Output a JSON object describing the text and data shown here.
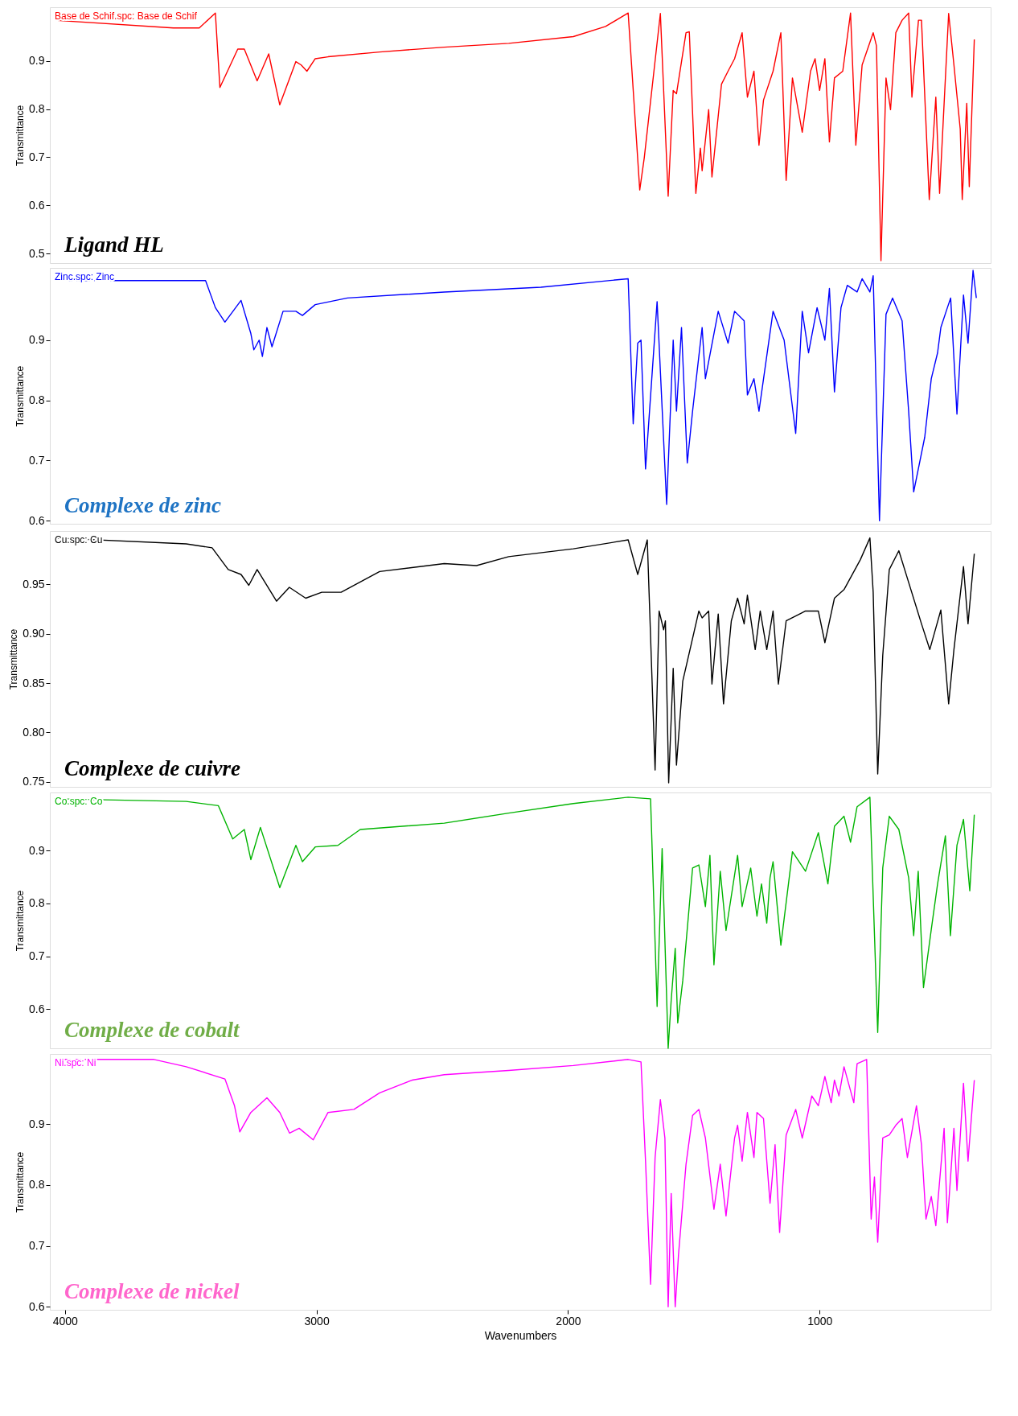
{
  "chart_data": [
    {
      "type": "line",
      "xlim": [
        4060,
        320
      ],
      "ylim": [
        0.48,
        1.012
      ],
      "yticks": [
        0.5,
        0.6,
        0.7,
        0.8,
        0.9
      ],
      "ylabel": "Transmittance",
      "tick_labels": "y",
      "grid": false,
      "marker": "none",
      "line_style": "solid",
      "annotations": [
        "Base de Schif.spc: Base de Schif",
        "Ligand HL"
      ],
      "series": [
        {
          "color": "#ff0000",
          "x": [
            4043,
            3569,
            3466,
            3402,
            3384,
            3313,
            3287,
            3236,
            3190,
            3146,
            3082,
            3061,
            3038,
            3005,
            2954,
            2749,
            2492,
            2236,
            1979,
            1851,
            1761,
            1715,
            1697,
            1633,
            1602,
            1582,
            1569,
            1531,
            1518,
            1492,
            1474,
            1467,
            1441,
            1428,
            1390,
            1364,
            1338,
            1308,
            1287,
            1261,
            1241,
            1223,
            1185,
            1154,
            1133,
            1108,
            1069,
            1036,
            1018,
            1000,
            979,
            961,
            941,
            908,
            877,
            856,
            831,
            787,
            774,
            756,
            736,
            718,
            697,
            672,
            646,
            633,
            607,
            595,
            564,
            538,
            523,
            487,
            466,
            441,
            433,
            415,
            405,
            385
          ],
          "values": [
            0.985,
            0.969,
            0.969,
            1.0,
            0.845,
            0.925,
            0.925,
            0.859,
            0.915,
            0.809,
            0.899,
            0.892,
            0.879,
            0.905,
            0.909,
            0.919,
            0.929,
            0.937,
            0.951,
            0.972,
            1.0,
            0.632,
            0.699,
            0.999,
            0.619,
            0.839,
            0.832,
            0.959,
            0.961,
            0.625,
            0.719,
            0.672,
            0.799,
            0.659,
            0.852,
            0.879,
            0.905,
            0.959,
            0.825,
            0.879,
            0.725,
            0.819,
            0.879,
            0.959,
            0.652,
            0.865,
            0.752,
            0.879,
            0.905,
            0.839,
            0.905,
            0.732,
            0.865,
            0.879,
            1.0,
            0.725,
            0.892,
            0.959,
            0.932,
            0.485,
            0.865,
            0.799,
            0.959,
            0.985,
            1.0,
            0.825,
            0.985,
            0.985,
            0.612,
            0.825,
            0.625,
            0.999,
            0.892,
            0.759,
            0.612,
            0.812,
            0.639,
            0.945
          ]
        }
      ]
    },
    {
      "type": "line",
      "xlim": [
        4060,
        320
      ],
      "ylim": [
        0.595,
        1.02
      ],
      "yticks": [
        0.6,
        0.7,
        0.8,
        0.9
      ],
      "ylabel": "Transmittance",
      "tick_labels": "y",
      "grid": false,
      "marker": "none",
      "line_style": "solid",
      "annotations": [
        "Zinc.spc: Zinc",
        "Complexe de zinc"
      ],
      "series": [
        {
          "color": "#0000ff",
          "x": [
            4043,
            3441,
            3402,
            3364,
            3300,
            3261,
            3249,
            3228,
            3215,
            3197,
            3177,
            3133,
            3082,
            3056,
            3005,
            2877,
            2492,
            2108,
            1761,
            1741,
            1723,
            1710,
            1692,
            1646,
            1608,
            1582,
            1569,
            1549,
            1526,
            1505,
            1467,
            1454,
            1403,
            1364,
            1338,
            1300,
            1287,
            1261,
            1241,
            1185,
            1141,
            1095,
            1069,
            1044,
            1010,
            979,
            961,
            941,
            915,
            890,
            851,
            831,
            800,
            787,
            762,
            736,
            710,
            672,
            646,
            626,
            582,
            556,
            531,
            518,
            492,
            479,
            454,
            428,
            410,
            390,
            377
          ],
          "values": [
            0.999,
            0.999,
            0.954,
            0.93,
            0.966,
            0.911,
            0.884,
            0.9,
            0.873,
            0.921,
            0.889,
            0.948,
            0.948,
            0.941,
            0.959,
            0.97,
            0.98,
            0.988,
            1.002,
            0.761,
            0.895,
            0.9,
            0.686,
            0.964,
            0.627,
            0.9,
            0.782,
            0.921,
            0.696,
            0.782,
            0.921,
            0.836,
            0.948,
            0.895,
            0.948,
            0.932,
            0.809,
            0.836,
            0.782,
            0.948,
            0.9,
            0.745,
            0.948,
            0.879,
            0.954,
            0.9,
            0.986,
            0.814,
            0.954,
            0.991,
            0.98,
            1.002,
            0.98,
            1.007,
            0.6,
            0.943,
            0.97,
            0.932,
            0.782,
            0.648,
            0.739,
            0.836,
            0.879,
            0.921,
            0.954,
            0.97,
            0.777,
            0.975,
            0.895,
            1.016,
            0.97
          ]
        }
      ]
    },
    {
      "type": "line",
      "xlim": [
        4060,
        320
      ],
      "ylim": [
        0.745,
        1.004
      ],
      "yticks": [
        {
          "value": 0.75,
          "label": "0.75"
        },
        {
          "value": 0.8,
          "label": "0.80"
        },
        {
          "value": 0.85,
          "label": "0.85"
        },
        {
          "value": 0.9,
          "label": "0.90"
        },
        {
          "value": 0.95,
          "label": "0.95"
        }
      ],
      "ylabel": "Transmittance",
      "tick_labels": "y",
      "grid": false,
      "marker": "none",
      "line_style": "solid",
      "annotations": [
        "Cu.spc: Cu",
        "Complexe de cuivre"
      ],
      "series": [
        {
          "color": "#000000",
          "x": [
            4043,
            3518,
            3415,
            3351,
            3300,
            3269,
            3236,
            3159,
            3108,
            3043,
            2979,
            2902,
            2749,
            2492,
            2364,
            2236,
            1979,
            1761,
            1723,
            1685,
            1654,
            1638,
            1620,
            1613,
            1600,
            1582,
            1569,
            1544,
            1480,
            1467,
            1441,
            1428,
            1403,
            1382,
            1351,
            1326,
            1300,
            1287,
            1256,
            1236,
            1210,
            1185,
            1164,
            1133,
            1056,
            1005,
            979,
            941,
            902,
            838,
            800,
            787,
            769,
            749,
            723,
            685,
            646,
            595,
            562,
            518,
            487,
            466,
            428,
            410,
            385
          ],
          "values": [
            0.997,
            0.991,
            0.987,
            0.965,
            0.96,
            0.949,
            0.965,
            0.933,
            0.947,
            0.936,
            0.942,
            0.942,
            0.963,
            0.971,
            0.969,
            0.978,
            0.986,
            0.995,
            0.96,
            0.995,
            0.762,
            0.923,
            0.904,
            0.913,
            0.749,
            0.865,
            0.767,
            0.852,
            0.923,
            0.916,
            0.923,
            0.849,
            0.92,
            0.829,
            0.913,
            0.936,
            0.91,
            0.939,
            0.884,
            0.923,
            0.884,
            0.923,
            0.849,
            0.913,
            0.923,
            0.923,
            0.891,
            0.936,
            0.945,
            0.975,
            0.997,
            0.942,
            0.758,
            0.878,
            0.965,
            0.984,
            0.952,
            0.91,
            0.884,
            0.924,
            0.829,
            0.884,
            0.968,
            0.91,
            0.981
          ]
        }
      ]
    },
    {
      "type": "line",
      "xlim": [
        4060,
        320
      ],
      "ylim": [
        0.526,
        1.01
      ],
      "yticks": [
        0.6,
        0.7,
        0.8,
        0.9
      ],
      "ylabel": "Transmittance",
      "tick_labels": "y",
      "grid": false,
      "marker": "none",
      "line_style": "solid",
      "annotations": [
        "Co.spc: Co",
        "Complexe de cobalt"
      ],
      "series": [
        {
          "color": "#00b400",
          "x": [
            4043,
            3518,
            3390,
            3333,
            3287,
            3261,
            3223,
            3146,
            3082,
            3056,
            3005,
            2915,
            2826,
            2492,
            2236,
            1979,
            1761,
            1672,
            1646,
            1626,
            1602,
            1590,
            1574,
            1564,
            1544,
            1505,
            1480,
            1454,
            1436,
            1420,
            1395,
            1372,
            1326,
            1308,
            1274,
            1249,
            1231,
            1210,
            1197,
            1185,
            1154,
            1108,
            1056,
            1005,
            967,
            941,
            903,
            877,
            851,
            800,
            769,
            749,
            723,
            685,
            646,
            626,
            608,
            587,
            556,
            531,
            500,
            480,
            454,
            428,
            403,
            385
          ],
          "values": [
            0.998,
            0.993,
            0.985,
            0.922,
            0.94,
            0.883,
            0.944,
            0.83,
            0.91,
            0.879,
            0.907,
            0.91,
            0.94,
            0.952,
            0.971,
            0.989,
            1.001,
            0.998,
            0.605,
            0.904,
            0.526,
            0.617,
            0.715,
            0.574,
            0.654,
            0.867,
            0.873,
            0.794,
            0.891,
            0.684,
            0.861,
            0.749,
            0.891,
            0.794,
            0.867,
            0.776,
            0.837,
            0.763,
            0.849,
            0.879,
            0.721,
            0.898,
            0.861,
            0.934,
            0.837,
            0.946,
            0.965,
            0.916,
            0.983,
            1.001,
            0.556,
            0.867,
            0.965,
            0.94,
            0.849,
            0.739,
            0.861,
            0.641,
            0.751,
            0.837,
            0.928,
            0.739,
            0.91,
            0.959,
            0.824,
            0.968
          ]
        }
      ]
    },
    {
      "type": "line",
      "xlim": [
        4060,
        320
      ],
      "ylim": [
        0.595,
        1.015
      ],
      "yticks": [
        0.6,
        0.7,
        0.8,
        0.9
      ],
      "xticks": [
        {
          "value": 4000,
          "label": "4000"
        },
        {
          "value": 3000,
          "label": "3000"
        },
        {
          "value": 2000,
          "label": "2000"
        },
        {
          "value": 1000,
          "label": "1000"
        }
      ],
      "xlabel": "Wavenumbers",
      "ylabel": "Transmittance",
      "grid": false,
      "marker": "none",
      "line_style": "solid",
      "annotations": [
        "Ni.spc: Ni",
        "Complexe de nickel"
      ],
      "series": [
        {
          "color": "#ff00ff",
          "x": [
            4043,
            3646,
            3518,
            3364,
            3326,
            3305,
            3261,
            3197,
            3146,
            3107,
            3069,
            3013,
            2954,
            2851,
            2749,
            2620,
            2492,
            2236,
            1979,
            1761,
            1710,
            1692,
            1672,
            1654,
            1633,
            1615,
            1602,
            1590,
            1574,
            1561,
            1531,
            1505,
            1480,
            1454,
            1420,
            1395,
            1372,
            1338,
            1326,
            1308,
            1287,
            1261,
            1249,
            1223,
            1197,
            1177,
            1159,
            1133,
            1095,
            1069,
            1031,
            1005,
            979,
            954,
            941,
            923,
            903,
            864,
            851,
            813,
            795,
            782,
            769,
            749,
            723,
            697,
            672,
            651,
            615,
            595,
            577,
            556,
            538,
            505,
            492,
            466,
            454,
            428,
            410,
            385
          ],
          "values": [
            1.006,
            1.006,
            0.994,
            0.974,
            0.93,
            0.887,
            0.919,
            0.943,
            0.919,
            0.885,
            0.893,
            0.874,
            0.919,
            0.924,
            0.951,
            0.972,
            0.981,
            0.988,
            0.996,
            1.006,
            1.002,
            0.839,
            0.637,
            0.845,
            0.94,
            0.877,
            0.6,
            0.786,
            0.6,
            0.685,
            0.834,
            0.914,
            0.924,
            0.877,
            0.76,
            0.834,
            0.749,
            0.877,
            0.898,
            0.839,
            0.919,
            0.845,
            0.919,
            0.909,
            0.77,
            0.866,
            0.722,
            0.882,
            0.924,
            0.877,
            0.946,
            0.93,
            0.978,
            0.935,
            0.972,
            0.946,
            0.994,
            0.935,
            0.999,
            1.006,
            0.744,
            0.813,
            0.706,
            0.877,
            0.882,
            0.898,
            0.909,
            0.845,
            0.93,
            0.866,
            0.744,
            0.781,
            0.733,
            0.893,
            0.738,
            0.893,
            0.791,
            0.967,
            0.839,
            0.972
          ]
        }
      ]
    }
  ]
}
